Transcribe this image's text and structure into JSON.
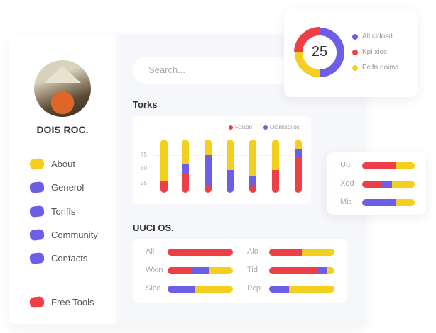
{
  "colors": {
    "red": "#ef3f46",
    "purple": "#6c5ee6",
    "yellow": "#f4cf1d"
  },
  "profile": {
    "name": "DOIS ROC."
  },
  "sidebar": {
    "items": [
      {
        "label": "About",
        "color": "#f4cf1d"
      },
      {
        "label": "Generol",
        "color": "#6c5ee6"
      },
      {
        "label": "Toriffs",
        "color": "#6c5ee6"
      },
      {
        "label": "Community",
        "color": "#6c5ee6"
      },
      {
        "label": "Contacts",
        "color": "#6c5ee6"
      },
      {
        "label": "Free Tools",
        "color": "#ef3f46"
      }
    ]
  },
  "search": {
    "placeholder": "Search..."
  },
  "torks": {
    "title": "Torks",
    "legend": [
      "Fdison",
      "Oidnksdi os"
    ],
    "ticks": [
      "75",
      "50",
      "25"
    ],
    "bars": [
      [
        [
          "red",
          23
        ],
        [
          "yellow",
          77
        ]
      ],
      [
        [
          "red",
          36
        ],
        [
          "purple",
          17
        ],
        [
          "yellow",
          47
        ]
      ],
      [
        [
          "red",
          15
        ],
        [
          "purple",
          56
        ],
        [
          "yellow",
          29
        ]
      ],
      [
        [
          "purple",
          43
        ],
        [
          "yellow",
          57
        ]
      ],
      [
        [
          "red",
          15
        ],
        [
          "purple",
          16
        ],
        [
          "yellow",
          69
        ]
      ],
      [
        [
          "red",
          43
        ],
        [
          "yellow",
          57
        ]
      ],
      [
        [
          "red",
          68
        ],
        [
          "purple",
          15
        ],
        [
          "yellow",
          17
        ]
      ]
    ]
  },
  "donut": {
    "value": "25",
    "segments": [
      [
        "purple",
        50
      ],
      [
        "yellow",
        25
      ],
      [
        "red",
        25
      ]
    ],
    "legend": [
      {
        "label": "All cidosd",
        "color": "purple"
      },
      {
        "label": "Kpi xioc",
        "color": "red"
      },
      {
        "label": "Pcifn doinvi",
        "color": "yellow"
      }
    ]
  },
  "side_card": {
    "rows": [
      {
        "label": "Uui",
        "parts": [
          [
            "red",
            65
          ],
          [
            "yellow",
            35
          ]
        ]
      },
      {
        "label": "Xod",
        "parts": [
          [
            "red",
            35
          ],
          [
            "purple",
            22
          ],
          [
            "yellow",
            43
          ]
        ]
      },
      {
        "label": "Mic",
        "parts": [
          [
            "purple",
            65
          ],
          [
            "yellow",
            35
          ]
        ]
      }
    ]
  },
  "uuci": {
    "title": "UUCI OS.",
    "rows": [
      {
        "label": "All",
        "parts": [
          [
            "red",
            100
          ]
        ]
      },
      {
        "label": "Aio",
        "parts": [
          [
            "red",
            50
          ],
          [
            "yellow",
            50
          ]
        ]
      },
      {
        "label": "Wxin",
        "parts": [
          [
            "red",
            36
          ],
          [
            "purple",
            27
          ],
          [
            "yellow",
            37
          ]
        ]
      },
      {
        "label": "Tid",
        "parts": [
          [
            "red",
            73
          ],
          [
            "purple",
            15
          ],
          [
            "yellow",
            12
          ]
        ]
      },
      {
        "label": "Sico",
        "parts": [
          [
            "purple",
            42
          ],
          [
            "yellow",
            58
          ]
        ]
      },
      {
        "label": "Pcp",
        "parts": [
          [
            "purple",
            30
          ],
          [
            "yellow",
            70
          ]
        ]
      }
    ]
  }
}
